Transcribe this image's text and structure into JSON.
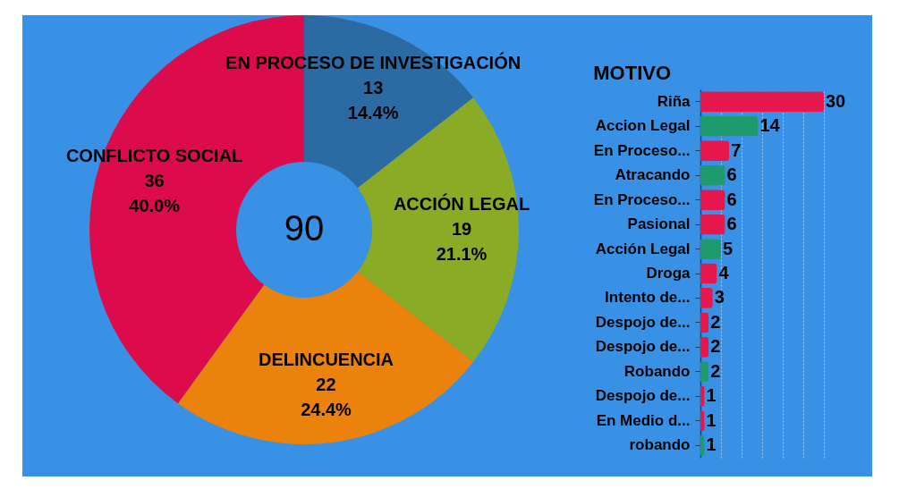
{
  "chart_data": [
    {
      "type": "donut",
      "categories": [
        "EN PROCESO DE INVESTIGACIÓN",
        "ACCIÓN LEGAL",
        "DELINCUENCIA",
        "CONFLICTO SOCIAL"
      ],
      "values": [
        13,
        19,
        22,
        36
      ],
      "colors": [
        "#2b6aa2",
        "#8aab26",
        "#ea820c",
        "#dc0c4c"
      ],
      "value_labels": [
        "13\n14.4%",
        "19\n21.1%",
        "22\n24.4%",
        "36\n40.0%"
      ],
      "annotations": [
        "90"
      ]
    },
    {
      "type": "bar",
      "orientation": "horizontal",
      "title": "MOTIVO",
      "categories": [
        "Riña",
        "Accion Legal",
        "En Proceso...",
        "Atracando",
        "En Proceso...",
        "Pasional",
        "Acción Legal",
        "Droga",
        "Intento de...",
        "Despojo de...",
        "Despojo de...",
        "Robando",
        "Despojo de...",
        "En Medio d...",
        "robando"
      ],
      "values": [
        30,
        14,
        7,
        6,
        6,
        6,
        5,
        4,
        3,
        2,
        2,
        2,
        1,
        1,
        1
      ],
      "colors": [
        "#e5174d",
        "#1f9a6e",
        "#e5174d",
        "#1f9a6e",
        "#e5174d",
        "#e5174d",
        "#1f9a6e",
        "#e5174d",
        "#e5174d",
        "#e5174d",
        "#e5174d",
        "#1f9a6e",
        "#e5174d",
        "#e5174d",
        "#1f9a6e"
      ],
      "data_labels": true,
      "xlim": [
        0,
        30
      ],
      "xticks": [
        {
          "value": 0,
          "label": null
        },
        {
          "value": 5,
          "label": null
        },
        {
          "value": 10,
          "label": null
        },
        {
          "value": 15,
          "label": null
        },
        {
          "value": 20,
          "label": null
        },
        {
          "value": 25,
          "label": null
        },
        {
          "value": 30,
          "label": null
        }
      ],
      "grid": "x",
      "tick_labels": "y"
    }
  ]
}
